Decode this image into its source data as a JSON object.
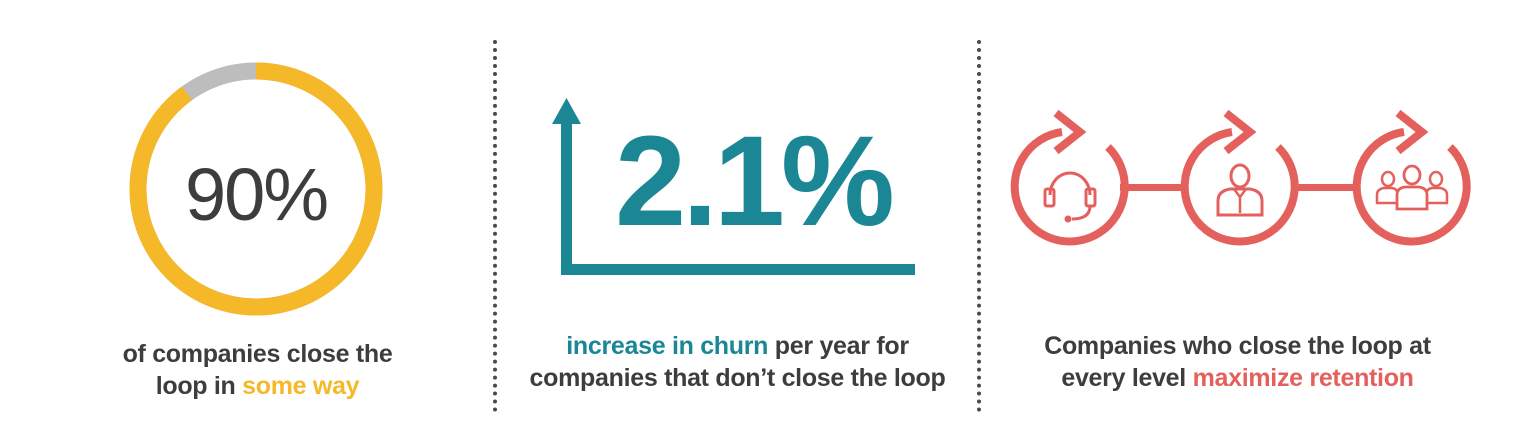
{
  "stat1": {
    "value": "90%",
    "fraction": 0.9,
    "caption_line1": "of companies close the",
    "caption_line2_prefix": "loop in ",
    "caption_line2_highlight": "some way"
  },
  "stat2": {
    "value": "2.1%",
    "caption_line1_highlight": "increase in churn",
    "caption_line1_suffix": " per year for",
    "caption_line2": "companies that don’t close the loop"
  },
  "stat3": {
    "caption_line1": "Companies who close the loop at",
    "caption_line2_prefix": "every level ",
    "caption_line2_highlight": "maximize retention",
    "icons": [
      "headset-agent-icon",
      "person-icon",
      "group-icon"
    ]
  },
  "colors": {
    "yellow": "#f5b829",
    "gray": "#bdbdbd",
    "teal": "#1b8795",
    "red": "#e4605c",
    "text": "#3d3d3d"
  }
}
